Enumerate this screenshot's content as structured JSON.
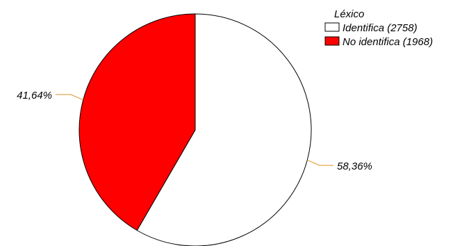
{
  "chart_data": {
    "type": "pie",
    "legend_title": "Léxico",
    "legend_position": "top-right",
    "slices": [
      {
        "label": "Identifica (2758)",
        "value": 2758,
        "percent_label": "58,36%",
        "color": "#ffffff"
      },
      {
        "label": "No identifica (1968)",
        "value": 1968,
        "percent_label": "41,64%",
        "color": "#ff0000"
      }
    ],
    "leader_line_color": "#e09020"
  }
}
